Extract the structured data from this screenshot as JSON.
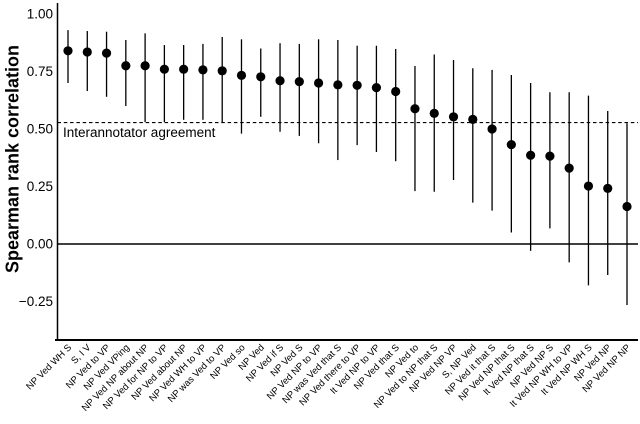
{
  "chart_data": {
    "type": "scatter",
    "title": "",
    "xlabel": "",
    "ylabel": "Spearman rank correlation",
    "ylim": [
      -0.4,
      1.05
    ],
    "yticks": [
      1.0,
      0.75,
      0.5,
      0.25,
      0.0,
      -0.25
    ],
    "ytick_labels": [
      "1.00",
      "0.75",
      "0.50",
      "0.25",
      "0.00",
      "−0.25"
    ],
    "grid": false,
    "legend": "none",
    "x_label_rotation": 45,
    "marker": {
      "shape": "circle",
      "color": "#000000",
      "radius_px": 4.6
    },
    "line_color": "#000000",
    "background_color": "#ffffff",
    "reference_lines": [
      {
        "value": 0.528,
        "style": "dashed",
        "label": "Interannotator agreement"
      },
      {
        "value": 0.0,
        "style": "solid",
        "label": ""
      }
    ],
    "categories": [
      "NP Ved WH S",
      "S, I V",
      "NP Ved to VP",
      "NP Ved VPing",
      "NP Ved NP about NP",
      "NP Ved for NP to VP",
      "NP Ved about NP",
      "NP Ved WH to VP",
      "NP was Ved to VP",
      "NP Ved so",
      "NP Ved",
      "NP Ved if S",
      "NP Ved S",
      "NP Ved NP to VP",
      "NP was Ved that S",
      "NP Ved there to VP",
      "It Ved NP to VP",
      "NP Ved that S",
      "NP Ved to",
      "NP Ved to NP that S",
      "NP Ved NP VP",
      "S, NP Ved",
      "NP Ved it that S",
      "NP Ved NP that S",
      "It Ved NP that S",
      "NP Ved NP S",
      "It Ved NP WH to VP",
      "It Ved NP WH S",
      "NP Ved NP",
      "NP Ved NP NP"
    ],
    "series": [
      {
        "name": "Spearman rank correlation",
        "values": [
          0.84,
          0.835,
          0.83,
          0.775,
          0.775,
          0.76,
          0.76,
          0.757,
          0.753,
          0.733,
          0.727,
          0.71,
          0.706,
          0.7,
          0.692,
          0.69,
          0.68,
          0.663,
          0.588,
          0.568,
          0.553,
          0.542,
          0.5,
          0.432,
          0.386,
          0.382,
          0.33,
          0.252,
          0.242,
          0.163
        ],
        "ci_low": [
          0.7,
          0.665,
          0.64,
          0.6,
          0.53,
          0.53,
          0.54,
          0.54,
          0.53,
          0.48,
          0.553,
          0.488,
          0.47,
          0.438,
          0.365,
          0.43,
          0.4,
          0.36,
          0.23,
          0.227,
          0.278,
          0.18,
          0.145,
          0.05,
          -0.03,
          0.068,
          -0.08,
          -0.18,
          -0.135,
          -0.265
        ],
        "ci_high": [
          0.93,
          0.926,
          0.923,
          0.887,
          0.916,
          0.865,
          0.865,
          0.87,
          0.9,
          0.89,
          0.85,
          0.873,
          0.87,
          0.89,
          0.887,
          0.862,
          0.862,
          0.848,
          0.774,
          0.824,
          0.8,
          0.764,
          0.757,
          0.735,
          0.7,
          0.66,
          0.66,
          0.645,
          0.578,
          0.525
        ]
      }
    ]
  }
}
